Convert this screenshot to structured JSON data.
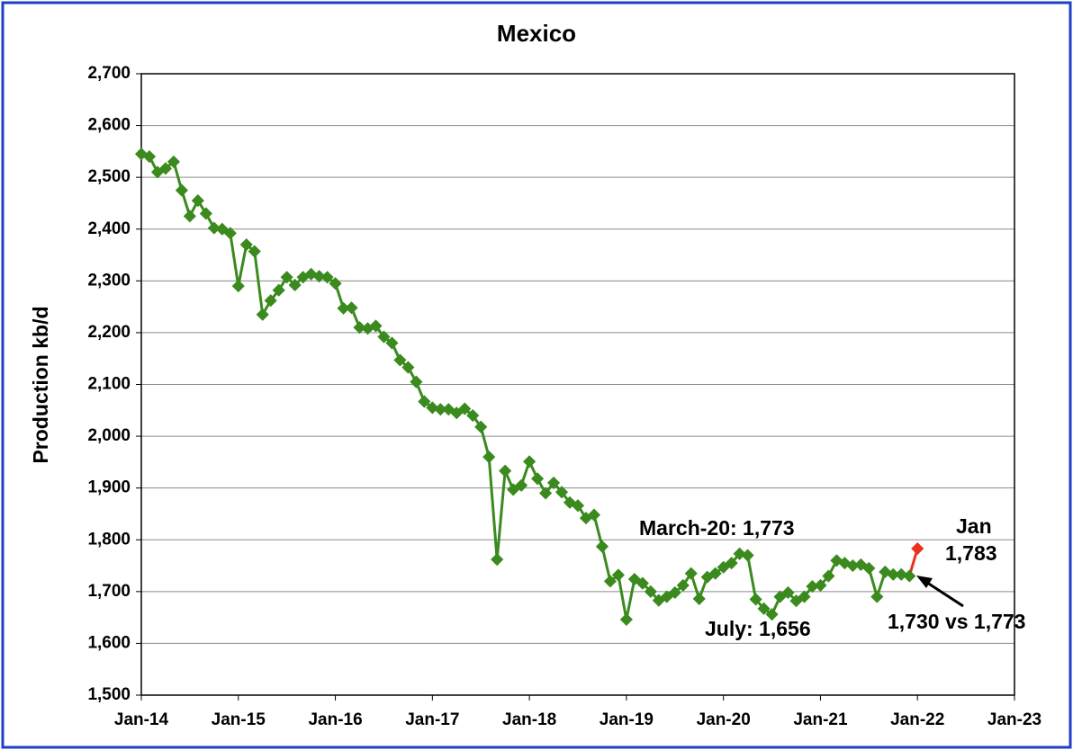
{
  "chart_data": {
    "type": "line",
    "title": "Mexico",
    "y_label": "Production kb/d",
    "x": [
      "2014-01",
      "2014-02",
      "2014-03",
      "2014-04",
      "2014-05",
      "2014-06",
      "2014-07",
      "2014-08",
      "2014-09",
      "2014-10",
      "2014-11",
      "2014-12",
      "2015-01",
      "2015-02",
      "2015-03",
      "2015-04",
      "2015-05",
      "2015-06",
      "2015-07",
      "2015-08",
      "2015-09",
      "2015-10",
      "2015-11",
      "2015-12",
      "2016-01",
      "2016-02",
      "2016-03",
      "2016-04",
      "2016-05",
      "2016-06",
      "2016-07",
      "2016-08",
      "2016-09",
      "2016-10",
      "2016-11",
      "2016-12",
      "2017-01",
      "2017-02",
      "2017-03",
      "2017-04",
      "2017-05",
      "2017-06",
      "2017-07",
      "2017-08",
      "2017-09",
      "2017-10",
      "2017-11",
      "2017-12",
      "2018-01",
      "2018-02",
      "2018-03",
      "2018-04",
      "2018-05",
      "2018-06",
      "2018-07",
      "2018-08",
      "2018-09",
      "2018-10",
      "2018-11",
      "2018-12",
      "2019-01",
      "2019-02",
      "2019-03",
      "2019-04",
      "2019-05",
      "2019-06",
      "2019-07",
      "2019-08",
      "2019-09",
      "2019-10",
      "2019-11",
      "2019-12",
      "2020-01",
      "2020-02",
      "2020-03",
      "2020-04",
      "2020-05",
      "2020-06",
      "2020-07",
      "2020-08",
      "2020-09",
      "2020-10",
      "2020-11",
      "2020-12",
      "2021-01",
      "2021-02",
      "2021-03",
      "2021-04",
      "2021-05",
      "2021-06",
      "2021-07",
      "2021-08",
      "2021-09",
      "2021-10",
      "2021-11",
      "2021-12"
    ],
    "series": [
      {
        "color": "#3a8a1e",
        "values": [
          2545,
          2540,
          2510,
          2517,
          2530,
          2475,
          2425,
          2455,
          2430,
          2402,
          2400,
          2392,
          2290,
          2370,
          2357,
          2235,
          2262,
          2282,
          2307,
          2292,
          2307,
          2313,
          2309,
          2307,
          2295,
          2247,
          2248,
          2210,
          2208,
          2213,
          2192,
          2180,
          2147,
          2133,
          2105,
          2067,
          2055,
          2052,
          2052,
          2045,
          2053,
          2040,
          2018,
          1960,
          1762,
          1933,
          1897,
          1905,
          1951,
          1918,
          1890,
          1910,
          1892,
          1872,
          1866,
          1842,
          1848,
          1787,
          1720,
          1732,
          1646,
          1724,
          1716,
          1700,
          1683,
          1690,
          1698,
          1712,
          1735,
          1686,
          1728,
          1735,
          1747,
          1755,
          1773,
          1770,
          1685,
          1667,
          1656,
          1690,
          1698,
          1682,
          1690,
          1710,
          1712,
          1730,
          1760,
          1755,
          1750,
          1752,
          1745,
          1690,
          1738,
          1733,
          1733,
          1730
        ]
      },
      {
        "color": "#e8321e",
        "x": [
          "2022-01"
        ],
        "values": [
          1783
        ]
      }
    ],
    "xlim": [
      "2014-01",
      "2023-01"
    ],
    "xticks": [
      {
        "value": "2014-01",
        "label": "Jan-14"
      },
      {
        "value": "2015-01",
        "label": "Jan-15"
      },
      {
        "value": "2016-01",
        "label": "Jan-16"
      },
      {
        "value": "2017-01",
        "label": "Jan-17"
      },
      {
        "value": "2018-01",
        "label": "Jan-18"
      },
      {
        "value": "2019-01",
        "label": "Jan-19"
      },
      {
        "value": "2020-01",
        "label": "Jan-20"
      },
      {
        "value": "2021-01",
        "label": "Jan-21"
      },
      {
        "value": "2022-01",
        "label": "Jan-22"
      },
      {
        "value": "2023-01",
        "label": "Jan-23"
      }
    ],
    "ylim": [
      1500,
      2700
    ],
    "yticks": [
      {
        "value": 1500,
        "label": "1,500"
      },
      {
        "value": 1600,
        "label": "1,600"
      },
      {
        "value": 1700,
        "label": "1,700"
      },
      {
        "value": 1800,
        "label": "1,800"
      },
      {
        "value": 1900,
        "label": "1,900"
      },
      {
        "value": 2000,
        "label": "2,000"
      },
      {
        "value": 2100,
        "label": "2,100"
      },
      {
        "value": 2200,
        "label": "2,200"
      },
      {
        "value": 2300,
        "label": "2,300"
      },
      {
        "value": 2400,
        "label": "2,400"
      },
      {
        "value": 2500,
        "label": "2,500"
      },
      {
        "value": 2600,
        "label": "2,600"
      },
      {
        "value": 2700,
        "label": "2,700"
      }
    ],
    "grid": true,
    "annotations": [
      "March-20: 1,773",
      "July: 1,656",
      "Jan",
      "1,783",
      "1,730 vs 1,773"
    ]
  }
}
